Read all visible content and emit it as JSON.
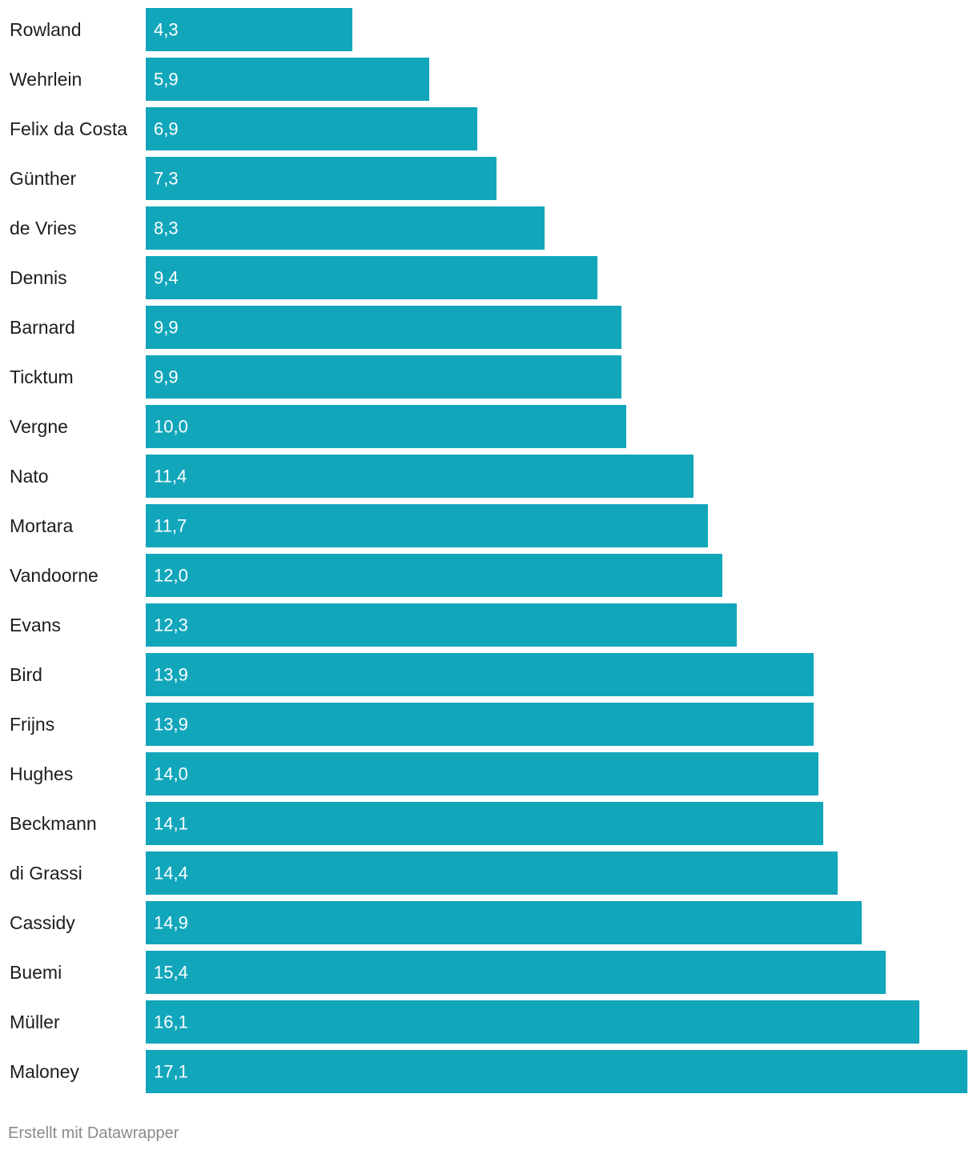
{
  "chart_data": {
    "type": "bar",
    "orientation": "horizontal",
    "categories": [
      "Rowland",
      "Wehrlein",
      "Felix da Costa",
      "Günther",
      "de Vries",
      "Dennis",
      "Barnard",
      "Ticktum",
      "Vergne",
      "Nato",
      "Mortara",
      "Vandoorne",
      "Evans",
      "Bird",
      "Frijns",
      "Hughes",
      "Beckmann",
      "di Grassi",
      "Cassidy",
      "Buemi",
      "Müller",
      "Maloney"
    ],
    "values": [
      4.3,
      5.9,
      6.9,
      7.3,
      8.3,
      9.4,
      9.9,
      9.9,
      10.0,
      11.4,
      11.7,
      12.0,
      12.3,
      13.9,
      13.9,
      14.0,
      14.1,
      14.4,
      14.9,
      15.4,
      16.1,
      17.1
    ],
    "value_labels": [
      "4,3",
      "5,9",
      "6,9",
      "7,3",
      "8,3",
      "9,4",
      "9,9",
      "9,9",
      "10,0",
      "11,4",
      "11,7",
      "12,0",
      "12,3",
      "13,9",
      "13,9",
      "14,0",
      "14,1",
      "14,4",
      "14,9",
      "15,4",
      "16,1",
      "17,1"
    ],
    "xlim": [
      0,
      17.1
    ],
    "grid": false,
    "bar_color": "#12a6bb",
    "label_color": "#1d1d1d",
    "value_label_color": "#ffffff"
  },
  "footer": {
    "credit": "Erstellt mit Datawrapper"
  }
}
